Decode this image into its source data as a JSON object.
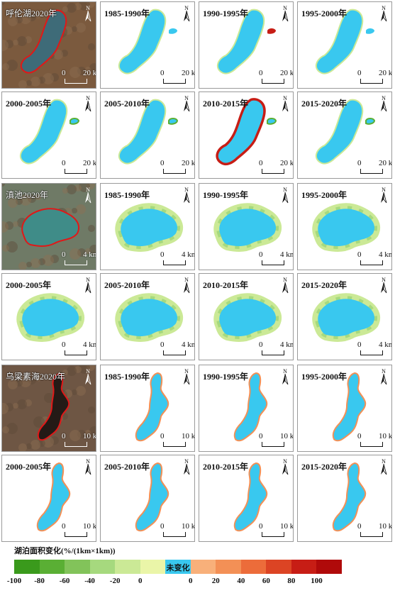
{
  "panels": [
    {
      "label": "呼伦湖2020年",
      "type": "sat",
      "scale": "20 km"
    },
    {
      "label": "1985-1990年",
      "type": "change",
      "scale": "20 km"
    },
    {
      "label": "1990-1995年",
      "type": "change",
      "scale": "20 km"
    },
    {
      "label": "1995-2000年",
      "type": "change",
      "scale": "20 km"
    },
    {
      "label": "2000-2005年",
      "type": "change",
      "scale": "20 km"
    },
    {
      "label": "2005-2010年",
      "type": "change",
      "scale": "20 km"
    },
    {
      "label": "2010-2015年",
      "type": "change",
      "scale": "20 km"
    },
    {
      "label": "2015-2020年",
      "type": "change",
      "scale": "20 km"
    },
    {
      "label": "滇池2020年",
      "type": "sat",
      "scale": "4 km"
    },
    {
      "label": "1985-1990年",
      "type": "change",
      "scale": "4 km"
    },
    {
      "label": "1990-1995年",
      "type": "change",
      "scale": "4 km"
    },
    {
      "label": "1995-2000年",
      "type": "change",
      "scale": "4 km"
    },
    {
      "label": "2000-2005年",
      "type": "change",
      "scale": "4 km"
    },
    {
      "label": "2005-2010年",
      "type": "change",
      "scale": "4 km"
    },
    {
      "label": "2010-2015年",
      "type": "change",
      "scale": "4 km"
    },
    {
      "label": "2015-2020年",
      "type": "change",
      "scale": "4 km"
    },
    {
      "label": "乌梁素海2020年",
      "type": "sat",
      "scale": "10 km"
    },
    {
      "label": "1985-1990年",
      "type": "change",
      "scale": "10 km"
    },
    {
      "label": "1990-1995年",
      "type": "change",
      "scale": "10 km"
    },
    {
      "label": "1995-2000年",
      "type": "change",
      "scale": "10 km"
    },
    {
      "label": "2000-2005年",
      "type": "change",
      "scale": "10 km"
    },
    {
      "label": "2005-2010年",
      "type": "change",
      "scale": "10 km"
    },
    {
      "label": "2010-2015年",
      "type": "change",
      "scale": "10 km"
    },
    {
      "label": "2015-2020年",
      "type": "change",
      "scale": "10 km"
    }
  ],
  "north_label": "N",
  "scale_zero": "0",
  "legend": {
    "title": "湖泊面积变化(%/(1km×1km))",
    "nochange_label": "未变化",
    "colors": [
      "#3a9a1c",
      "#5aaf34",
      "#82c35a",
      "#a6d97e",
      "#cbe996",
      "#eaf5a8",
      "#39c8ef",
      "#f8b07a",
      "#f39056",
      "#ec6c3a",
      "#dc4424",
      "#c71d15",
      "#b00a0a"
    ],
    "ticks": [
      "-100",
      "-80",
      "-60",
      "-40",
      "-20",
      "0",
      "0",
      "20",
      "40",
      "60",
      "80",
      "100"
    ]
  }
}
